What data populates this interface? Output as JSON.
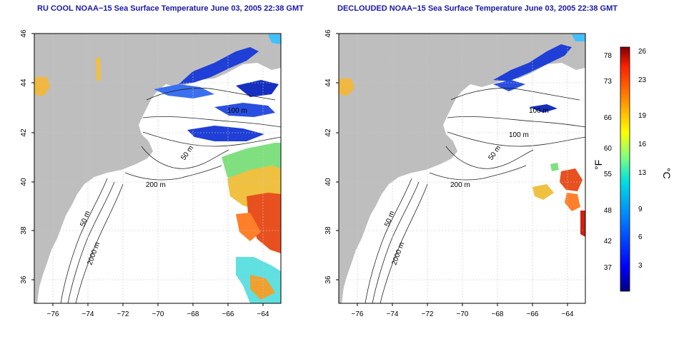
{
  "left_panel": {
    "title": "RU COOL NOAA−15 Sea Surface Temperature June 03, 2005 22:38 GMT",
    "contour_labels": [
      "100 m",
      "50 m",
      "200 m",
      "50 m",
      "2000 m"
    ]
  },
  "right_panel": {
    "title": "DECLOUDED NOAA−15 Sea Surface Temperature June 03, 2005 22:38 GMT",
    "contour_labels": [
      "100 m",
      "100 m",
      "50 m",
      "200 m",
      "50 m",
      "2000 m"
    ]
  },
  "axes": {
    "x_ticks": [
      "−76",
      "−74",
      "−72",
      "−70",
      "−68",
      "−66",
      "−64"
    ],
    "y_ticks": [
      "46",
      "44",
      "42",
      "40",
      "38",
      "36"
    ]
  },
  "colorbar": {
    "fahrenheit_label": "°F",
    "celsius_label": "°C",
    "fahrenheit_ticks": [
      "78",
      "73",
      "66",
      "60",
      "55",
      "48",
      "42",
      "37"
    ],
    "celsius_ticks": [
      "26",
      "23",
      "19",
      "16",
      "13",
      "9",
      "6",
      "3"
    ]
  },
  "colors": {
    "title": "#1a1aa6",
    "land": "#bebebe",
    "cold": "#1f3fd6",
    "warm": "#e8501f"
  }
}
